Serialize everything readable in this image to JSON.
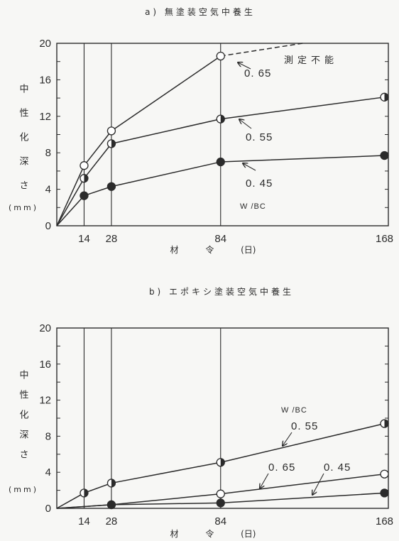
{
  "colors": {
    "ink": "#2b2b2b",
    "paper": "#f7f7f5"
  },
  "chart_data": [
    {
      "type": "line",
      "title": "a) 無塗装空気中養生",
      "xlabel": "材 令 (日)",
      "ylabel": "中性化深さ",
      "yunit": "(mm)",
      "xticks": [
        14,
        28,
        84,
        168
      ],
      "yticks": [
        0,
        4,
        8,
        12,
        16,
        20
      ],
      "xlim": [
        0,
        170
      ],
      "ylim": [
        0,
        20
      ],
      "grid_x": [
        14,
        28,
        84
      ],
      "minor_ytick_step": 2,
      "series_heading": "W /BC",
      "series": [
        {
          "name": "0. 65",
          "marker": "open",
          "x": [
            0,
            14,
            28,
            84
          ],
          "y": [
            0,
            6.6,
            10.4,
            18.6
          ],
          "dashed_extension": {
            "x": [
              84,
              126
            ],
            "y": [
              18.6,
              20
            ]
          }
        },
        {
          "name": "0. 55",
          "marker": "half",
          "x": [
            0,
            14,
            28,
            84,
            168
          ],
          "y": [
            0,
            5.2,
            9.0,
            11.7,
            14.1
          ]
        },
        {
          "name": "0. 45",
          "marker": "filled",
          "x": [
            0,
            14,
            28,
            84,
            168
          ],
          "y": [
            0,
            3.3,
            4.3,
            7.0,
            7.7
          ]
        }
      ],
      "annotations": [
        "測定不能"
      ]
    },
    {
      "type": "line",
      "title": "b) エポキシ塗装空気中養生",
      "xlabel": "材 令 (日)",
      "ylabel": "中性化深さ",
      "yunit": "(mm)",
      "xticks": [
        14,
        28,
        84,
        168
      ],
      "yticks": [
        0,
        4,
        8,
        12,
        16,
        20
      ],
      "xlim": [
        0,
        170
      ],
      "ylim": [
        0,
        20
      ],
      "grid_x": [
        14,
        28,
        84
      ],
      "minor_ytick_step": 2,
      "series_heading": "W /BC",
      "series": [
        {
          "name": "0. 55",
          "marker": "half",
          "x": [
            0,
            14,
            28,
            84,
            168
          ],
          "y": [
            0,
            1.7,
            2.8,
            5.1,
            9.4
          ]
        },
        {
          "name": "0. 65",
          "marker": "open",
          "x": [
            0,
            28,
            84,
            168
          ],
          "y": [
            0,
            0.4,
            1.6,
            3.8
          ]
        },
        {
          "name": "0. 45",
          "marker": "filled",
          "x": [
            0,
            28,
            84,
            168
          ],
          "y": [
            0,
            0.4,
            0.6,
            1.7
          ]
        }
      ],
      "annotations": []
    }
  ]
}
